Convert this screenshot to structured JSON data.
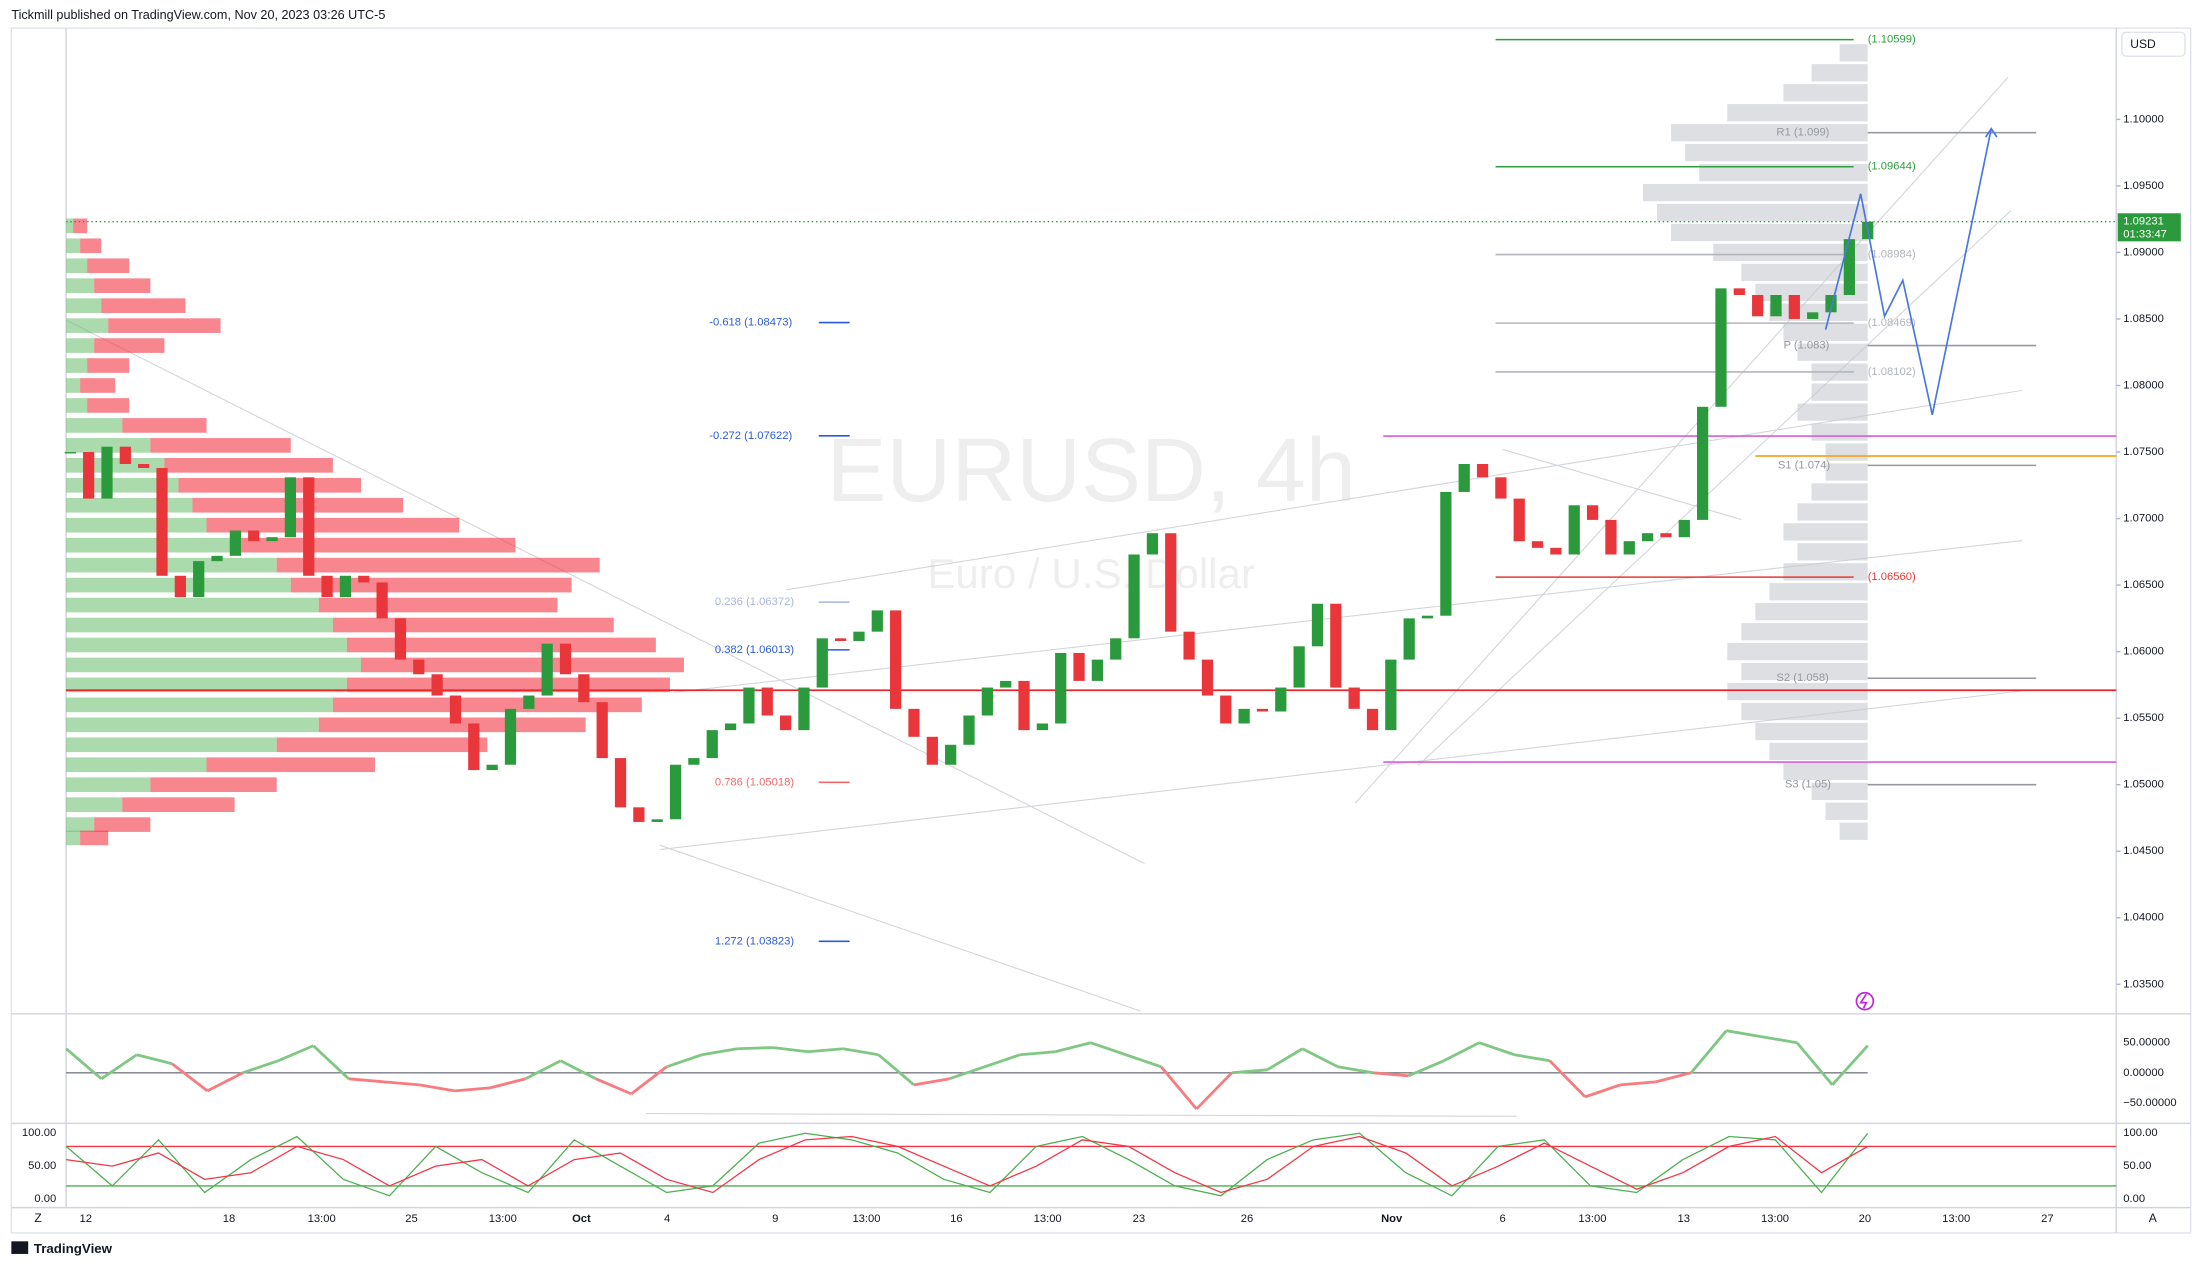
{
  "header": {
    "text": "Tickmill published on TradingView.com, Nov 20, 2023 03:26 UTC-5"
  },
  "footer": {
    "brand": "TradingView",
    "left_button": "Z",
    "right_button": "A",
    "currency": "USD"
  },
  "chart_data": {
    "type": "candlestick",
    "symbol": "EURUSD, 4h",
    "description": "Euro / U.S. Dollar",
    "up_color": "#2b9a3c",
    "down_color": "#e8363b",
    "ylim": [
      1.03278,
      1.10686
    ],
    "yticks": [
      {
        "value": 1.1,
        "label": "1.10000"
      },
      {
        "value": 1.095,
        "label": "1.09500"
      },
      {
        "value": 1.09,
        "label": "1.09000"
      },
      {
        "value": 1.085,
        "label": "1.08500"
      },
      {
        "value": 1.08,
        "label": "1.08000"
      },
      {
        "value": 1.075,
        "label": "1.07500"
      },
      {
        "value": 1.07,
        "label": "1.07000"
      },
      {
        "value": 1.065,
        "label": "1.06500"
      },
      {
        "value": 1.06,
        "label": "1.06000"
      },
      {
        "value": 1.055,
        "label": "1.05500"
      },
      {
        "value": 1.05,
        "label": "1.05000"
      },
      {
        "value": 1.045,
        "label": "1.04500"
      },
      {
        "value": 1.04,
        "label": "1.04000"
      },
      {
        "value": 1.035,
        "label": "1.03500"
      }
    ],
    "time_labels": [
      "12",
      "18",
      "13:00",
      "25",
      "13:00",
      "Oct",
      "4",
      "9",
      "13:00",
      "16",
      "13:00",
      "23",
      "26",
      "Nov",
      "6",
      "13:00",
      "13",
      "13:00",
      "20",
      "13:00",
      "27"
    ],
    "close": [
      1.075,
      1.0715,
      1.0754,
      1.0741,
      1.0738,
      1.0657,
      1.0641,
      1.0668,
      1.0672,
      1.0691,
      1.0683,
      1.0686,
      1.0731,
      1.0657,
      1.0641,
      1.0657,
      1.0652,
      1.0625,
      1.0594,
      1.0583,
      1.0567,
      1.0546,
      1.0511,
      1.0515,
      1.0557,
      1.0567,
      1.0606,
      1.0583,
      1.0562,
      1.052,
      1.0483,
      1.0472,
      1.0474,
      1.0515,
      1.052,
      1.0541,
      1.0546,
      1.0573,
      1.0552,
      1.0541,
      1.0573,
      1.061,
      1.0608,
      1.0615,
      1.0631,
      1.0557,
      1.0536,
      1.0515,
      1.053,
      1.0552,
      1.0573,
      1.0578,
      1.0541,
      1.0546,
      1.0599,
      1.0578,
      1.0594,
      1.061,
      1.0673,
      1.0689,
      1.0615,
      1.0594,
      1.0567,
      1.0546,
      1.0557,
      1.0555,
      1.0573,
      1.0604,
      1.0636,
      1.0573,
      1.0557,
      1.0541,
      1.0594,
      1.0625,
      1.0627,
      1.072,
      1.0741,
      1.0731,
      1.0715,
      1.0683,
      1.0678,
      1.0673,
      1.071,
      1.0699,
      1.0673,
      1.0683,
      1.0689,
      1.0686,
      1.0699,
      1.0784,
      1.0873,
      1.0868,
      1.0852,
      1.0868,
      1.085,
      1.0855,
      1.0868,
      1.091,
      1.09231
    ],
    "last_price": {
      "value": 1.09231,
      "label": "1.09231"
    },
    "countdown": "01:33:47",
    "last_color": "#2b9a3c",
    "levels": [
      {
        "value": 1.10599,
        "label": "(1.10599)",
        "color": "#2e9e3e"
      },
      {
        "value": 1.099,
        "label": "R1 (1.099)",
        "color": "#9598a1"
      },
      {
        "value": 1.09644,
        "label": "(1.09644)",
        "color": "#2e9e3e"
      },
      {
        "value": 1.08984,
        "label": "(1.08984)",
        "color": "#b2b5be"
      },
      {
        "value": 1.08469,
        "label": "(1.08469)",
        "color": "#b2b5be"
      },
      {
        "value": 1.083,
        "label": "P (1.083)",
        "color": "#9598a1"
      },
      {
        "value": 1.08102,
        "label": "(1.08102)",
        "color": "#b2b5be"
      },
      {
        "value": 1.074,
        "label": "S1 (1.074)",
        "color": "#9598a1"
      },
      {
        "value": 1.0656,
        "label": "(1.06560)",
        "color": "#e53935"
      },
      {
        "value": 1.058,
        "label": "S2 (1.058)",
        "color": "#9598a1"
      },
      {
        "value": 1.05,
        "label": "S3 (1.05)",
        "color": "#9598a1"
      },
      {
        "value": 1.08473,
        "label": "-0.618 (1.08473)",
        "color": "#2a5bd7"
      },
      {
        "value": 1.07622,
        "label": "-0.272 (1.07622)",
        "color": "#2a5bd7"
      },
      {
        "value": 1.06372,
        "label": "0.236 (1.06372)",
        "color": "#aab6dc"
      },
      {
        "value": 1.06013,
        "label": "0.382 (1.06013)",
        "color": "#2a5bd7"
      },
      {
        "value": 1.05018,
        "label": "0.786 (1.05018)",
        "color": "#ef6a6a"
      },
      {
        "value": 1.03823,
        "label": "1.272 (1.03823)",
        "color": "#2a5bd7"
      }
    ],
    "lines": [
      {
        "value": 1.0571,
        "color": "#e8262b"
      },
      {
        "value": 1.0762,
        "color": "#d65ee0"
      },
      {
        "value": 1.0517,
        "color": "#d65ee0"
      },
      {
        "value": 1.0747,
        "color": "#f5a623"
      }
    ],
    "projection": {
      "color": "#4a78e0",
      "values": [
        1.0842,
        1.0944,
        1.0852,
        1.0879,
        1.0778,
        1.0993
      ]
    },
    "volume_profile": {
      "buy_color": "#66bb6a",
      "sell_color": "#f23645",
      "prices": [
        1.092,
        1.0905,
        1.089,
        1.0875,
        1.086,
        1.0845,
        1.083,
        1.0815,
        1.08,
        1.0785,
        1.077,
        1.0755,
        1.074,
        1.0725,
        1.071,
        1.0695,
        1.068,
        1.0665,
        1.065,
        1.0635,
        1.062,
        1.0605,
        1.059,
        1.0575,
        1.056,
        1.0545,
        1.053,
        1.0515,
        1.05,
        1.0485,
        1.047,
        1.046
      ],
      "buy": [
        5,
        10,
        15,
        20,
        25,
        30,
        20,
        15,
        10,
        15,
        40,
        60,
        70,
        80,
        90,
        100,
        120,
        150,
        160,
        180,
        190,
        200,
        210,
        200,
        190,
        180,
        150,
        100,
        60,
        40,
        20,
        10
      ],
      "sell": [
        10,
        15,
        30,
        40,
        60,
        80,
        50,
        30,
        25,
        30,
        60,
        100,
        120,
        130,
        150,
        180,
        200,
        230,
        200,
        170,
        200,
        220,
        230,
        230,
        220,
        190,
        150,
        120,
        90,
        80,
        40,
        20
      ]
    },
    "session_profile": {
      "color": "#c7c9cf",
      "prices": [
        1.105,
        1.1035,
        1.102,
        1.1005,
        1.099,
        1.0975,
        1.096,
        1.0945,
        1.093,
        1.0915,
        1.09,
        1.0885,
        1.087,
        1.0855,
        1.084,
        1.0825,
        1.081,
        1.0795,
        1.078,
        1.0765,
        1.075,
        1.0735,
        1.072,
        1.0705,
        1.069,
        1.0675,
        1.066,
        1.0645,
        1.063,
        1.0615,
        1.06,
        1.0585,
        1.057,
        1.0555,
        1.054,
        1.0525,
        1.051,
        1.0495,
        1.048,
        1.0465
      ],
      "values": [
        20,
        40,
        60,
        100,
        140,
        130,
        120,
        160,
        150,
        140,
        110,
        90,
        80,
        70,
        60,
        50,
        40,
        40,
        50,
        40,
        30,
        30,
        40,
        50,
        60,
        50,
        60,
        70,
        80,
        90,
        100,
        90,
        100,
        90,
        80,
        70,
        60,
        40,
        30,
        20
      ]
    },
    "osc1": {
      "ylim": [
        -84,
        98
      ],
      "zero_color": "#787b86",
      "up_color": "#81c784",
      "down_color": "#f77c80",
      "yticks": [
        {
          "value": 50,
          "label": "50.00000"
        },
        {
          "value": 0,
          "label": "0.00000"
        },
        {
          "value": -50,
          "label": "−50.00000"
        }
      ],
      "values": [
        40,
        -10,
        30,
        15,
        -30,
        0,
        20,
        45,
        -10,
        -15,
        -20,
        -30,
        -25,
        -10,
        20,
        -10,
        -35,
        10,
        30,
        40,
        42,
        35,
        40,
        30,
        -20,
        -10,
        10,
        30,
        35,
        50,
        30,
        10,
        -60,
        0,
        5,
        40,
        10,
        0,
        -5,
        20,
        50,
        30,
        20,
        -40,
        -20,
        -15,
        0,
        70,
        60,
        50,
        -20,
        45
      ]
    },
    "osc2": {
      "ylim": [
        -13,
        115
      ],
      "yticks": [
        {
          "value": 100,
          "label": "100.00"
        },
        {
          "value": 50,
          "label": "50.00"
        },
        {
          "value": 0,
          "label": "0.00"
        }
      ],
      "bands": [
        {
          "value": 80,
          "color": "#f23645"
        },
        {
          "value": 20,
          "color": "#4caf50"
        }
      ],
      "series": [
        {
          "color": "#4caf50",
          "values": [
            80,
            20,
            90,
            10,
            60,
            95,
            30,
            5,
            80,
            40,
            10,
            90,
            50,
            10,
            20,
            85,
            100,
            90,
            70,
            30,
            10,
            80,
            95,
            60,
            20,
            5,
            60,
            90,
            100,
            40,
            5,
            80,
            90,
            20,
            10,
            60,
            95,
            90,
            10,
            100
          ]
        },
        {
          "color": "#f23645",
          "values": [
            60,
            50,
            70,
            30,
            40,
            80,
            60,
            20,
            50,
            60,
            20,
            60,
            70,
            30,
            10,
            60,
            90,
            95,
            80,
            50,
            20,
            50,
            90,
            80,
            40,
            10,
            30,
            80,
            95,
            70,
            20,
            50,
            85,
            50,
            15,
            40,
            80,
            95,
            40,
            80
          ]
        }
      ]
    }
  }
}
